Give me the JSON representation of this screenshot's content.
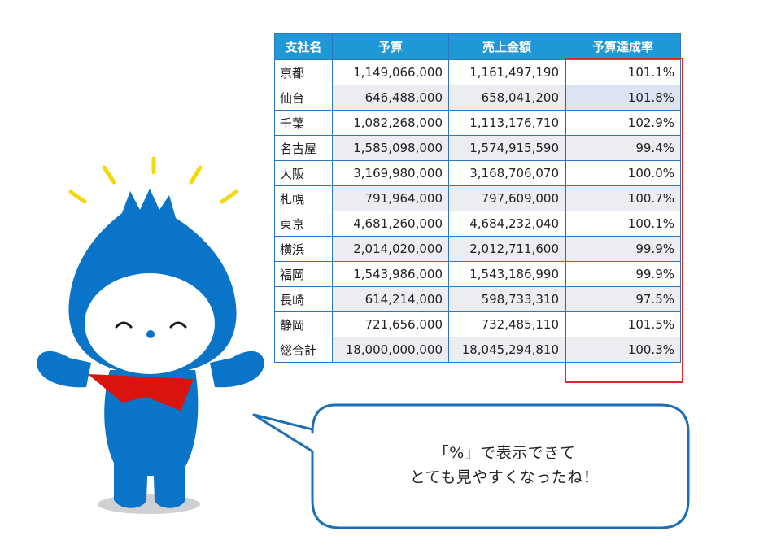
{
  "table": {
    "headers": [
      "支社名",
      "予算",
      "売上金額",
      "予算達成率"
    ],
    "rows": [
      {
        "branch": "京都",
        "budget": "1,149,066,000",
        "sales": "1,161,497,190",
        "rate": "101.1%"
      },
      {
        "branch": "仙台",
        "budget": "646,488,000",
        "sales": "658,041,200",
        "rate": "101.8%"
      },
      {
        "branch": "千葉",
        "budget": "1,082,268,000",
        "sales": "1,113,176,710",
        "rate": "102.9%"
      },
      {
        "branch": "名古屋",
        "budget": "1,585,098,000",
        "sales": "1,574,915,590",
        "rate": "99.4%"
      },
      {
        "branch": "大阪",
        "budget": "3,169,980,000",
        "sales": "3,168,706,070",
        "rate": "100.0%"
      },
      {
        "branch": "札幌",
        "budget": "791,964,000",
        "sales": "797,609,000",
        "rate": "100.7%"
      },
      {
        "branch": "東京",
        "budget": "4,681,260,000",
        "sales": "4,684,232,040",
        "rate": "100.1%"
      },
      {
        "branch": "横浜",
        "budget": "2,014,020,000",
        "sales": "2,012,711,600",
        "rate": "99.9%"
      },
      {
        "branch": "福岡",
        "budget": "1,543,986,000",
        "sales": "1,543,186,990",
        "rate": "99.9%"
      },
      {
        "branch": "長崎",
        "budget": "614,214,000",
        "sales": "598,733,310",
        "rate": "97.5%"
      },
      {
        "branch": "静岡",
        "budget": "721,656,000",
        "sales": "732,485,110",
        "rate": "101.5%"
      }
    ],
    "total": {
      "branch": "総合計",
      "budget": "18,000,000,000",
      "sales": "18,045,294,810",
      "rate": "100.3%"
    }
  },
  "bubble": {
    "line1": "「%」で表示できて",
    "line2": "とても見やすくなったね！"
  },
  "colors": {
    "header_bg": "#1f98d6",
    "border": "#2a78c0",
    "highlight": "#e0262b",
    "total_bg": "#a8d7e6",
    "mascot_blue": "#0a74c9",
    "scarf_red": "#d9140f",
    "sparkle_yellow": "#f5d90a"
  },
  "icons": {
    "mascot": "blue-drop-mascot",
    "sparkles": "sparkle-lines"
  }
}
